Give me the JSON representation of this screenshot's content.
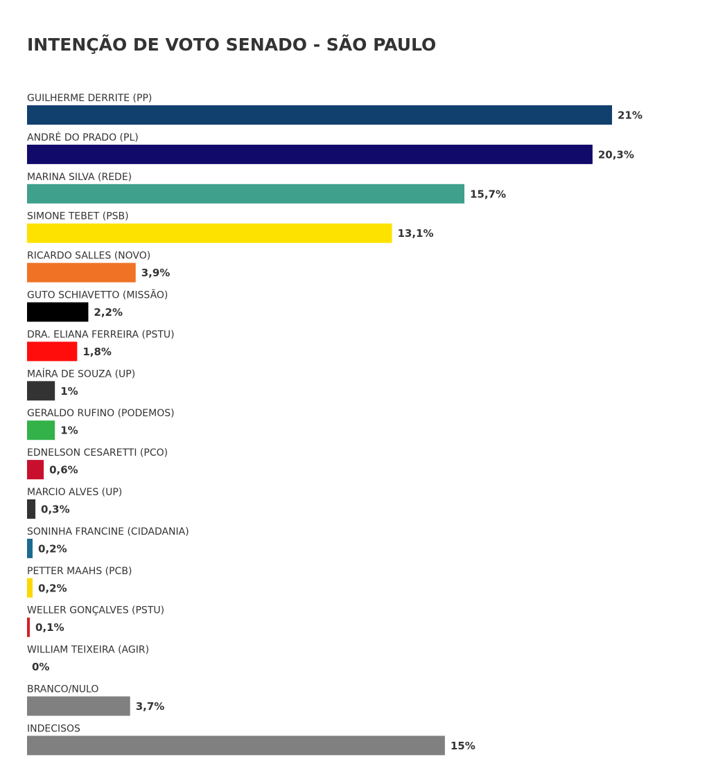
{
  "chart_data": {
    "type": "bar",
    "orientation": "horizontal",
    "title": "INTENÇÃO DE VOTO SENADO - SÃO PAULO",
    "categories": [
      "GUILHERME DERRITE (PP)",
      "ANDRÉ DO PRADO (PL)",
      "MARINA SILVA (REDE)",
      "SIMONE TEBET (PSB)",
      "RICARDO SALLES (NOVO)",
      "GUTO SCHIAVETTO (MISSÃO)",
      "DRA. ELIANA FERREIRA (PSTU)",
      "MAÍRA DE SOUZA (UP)",
      "GERALDO RUFINO (PODEMOS)",
      "EDNELSON CESARETTI (PCO)",
      "MARCIO ALVES (UP)",
      "SONINHA FRANCINE (CIDADANIA)",
      "PETTER MAAHS (PCB)",
      "WELLER GONÇALVES (PSTU)",
      "WILLIAM TEIXEIRA (AGIR)",
      "BRANCO/NULO",
      "INDECISOS"
    ],
    "values": [
      21,
      20.3,
      15.7,
      13.1,
      3.9,
      2.2,
      1.8,
      1,
      1,
      0.6,
      0.3,
      0.2,
      0.2,
      0.1,
      0,
      3.7,
      15
    ],
    "value_labels": [
      "21%",
      "20,3%",
      "15,7%",
      "13,1%",
      "3,9%",
      "2,2%",
      "1,8%",
      "1%",
      "1%",
      "0,6%",
      "0,3%",
      "0,2%",
      "0,2%",
      "0,1%",
      "0%",
      "3,7%",
      "15%"
    ],
    "colors": [
      "#12406e",
      "#120a6b",
      "#3fa08c",
      "#fde200",
      "#f07224",
      "#000000",
      "#ff0d0d",
      "#333333",
      "#33b24a",
      "#c8102e",
      "#333333",
      "#1b6a8f",
      "#fcd800",
      "#d32026",
      "#808080",
      "#808080",
      "#808080"
    ]
  }
}
